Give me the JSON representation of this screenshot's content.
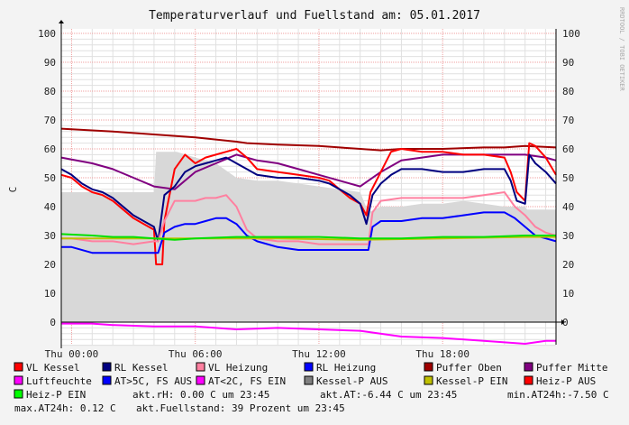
{
  "chart_data": {
    "type": "line",
    "title": "Temperaturverlauf und Fuellstand am: 05.01.2017",
    "ylabel": "C",
    "watermark": "RRDTOOL / TOBI OETIKER",
    "ylim": [
      -8,
      101
    ],
    "yticks": [
      0,
      10,
      20,
      30,
      40,
      50,
      60,
      70,
      80,
      90,
      100
    ],
    "ytick_labels": [
      "0",
      "10",
      "20",
      "30",
      "40",
      "50",
      "60",
      "70",
      "80",
      "90",
      "100"
    ],
    "x_range_hours": [
      -0.5,
      23.5
    ],
    "xticks_hours": [
      0,
      6,
      12,
      18
    ],
    "xtick_labels": [
      "Thu 00:00",
      "Thu 06:00",
      "Thu 12:00",
      "Thu 18:00"
    ],
    "grid": true,
    "legend_rows": [
      [
        {
          "label": "VL Kessel",
          "color": "#ff0000"
        },
        {
          "label": "RL Kessel",
          "color": "#000080"
        },
        {
          "label": "VL Heizung",
          "color": "#ff80a0"
        },
        {
          "label": "RL Heizung",
          "color": "#0000ff"
        },
        {
          "label": "Puffer Oben",
          "color": "#a00000"
        },
        {
          "label": "Puffer Mitte",
          "color": "#800080"
        }
      ],
      [
        {
          "label": "Luftfeuchte",
          "color": "#ff00ff"
        },
        {
          "label": "AT>5C, FS AUS",
          "color": "#0000ff"
        },
        {
          "label": "AT<2C, FS EIN",
          "color": "#ff00ff"
        },
        {
          "label": "Kessel-P AUS",
          "color": "#808080"
        },
        {
          "label": "Kessel-P EIN",
          "color": "#c0c000"
        },
        {
          "label": "Heiz-P AUS",
          "color": "#ff0000"
        }
      ]
    ],
    "legend_row3": {
      "label": "Heiz-P EIN",
      "color": "#00ff00"
    },
    "stats": {
      "rh": "akt.rH: 0.00 C um 23:45",
      "at": "akt.AT:-6.44 C um 23:45",
      "min_at": "min.AT24h:-7.50 C",
      "max_at": "max.AT24h: 0.12 C",
      "fuellstand": "akt.Fuellstand:   39 Prozent um 23:45"
    },
    "series": [
      {
        "name": "Kessel-P AUS",
        "color": "#d8d8d8",
        "style": "area",
        "x": [
          -0.5,
          4.0,
          4.1,
          5.0,
          5.1,
          6.0,
          7.0,
          8.0,
          9.0,
          10.0,
          11.0,
          12.0,
          13.0,
          14.0,
          14.4,
          15.0,
          16.0,
          17.0,
          18.0,
          19.0,
          20.0,
          21.0,
          22.0,
          22.1,
          23.5
        ],
        "values": [
          45,
          45,
          59,
          59,
          59,
          57,
          55,
          50,
          49,
          49,
          48,
          47,
          46,
          45,
          38,
          40,
          40,
          41,
          41,
          42,
          41,
          40,
          40,
          39,
          39
        ]
      },
      {
        "name": "Puffer Oben",
        "color": "#a00000",
        "x": [
          -0.5,
          2,
          4,
          6,
          8,
          8.5,
          10,
          12,
          14,
          15,
          16,
          18,
          20,
          21,
          22,
          23.5
        ],
        "values": [
          67,
          66,
          65,
          64,
          62.5,
          62,
          61.5,
          61,
          60,
          59.5,
          60,
          60,
          60.5,
          60.5,
          61,
          60.5
        ]
      },
      {
        "name": "Puffer Mitte",
        "color": "#800080",
        "x": [
          -0.5,
          1,
          2,
          3,
          4,
          5,
          6,
          7,
          8,
          9,
          10,
          11,
          12,
          13,
          14,
          15,
          16,
          17,
          18,
          19,
          20,
          21,
          22,
          23,
          23.5
        ],
        "values": [
          57,
          55,
          53,
          50,
          47,
          46,
          52,
          55,
          58,
          56,
          55,
          53,
          51,
          49,
          47,
          52,
          56,
          57,
          58,
          58,
          58,
          58,
          58,
          57,
          56
        ]
      },
      {
        "name": "VL Kessel",
        "color": "#ff0000",
        "x": [
          -0.5,
          0,
          0.5,
          1,
          1.5,
          2,
          2.5,
          3,
          3.5,
          4,
          4.1,
          4.4,
          4.5,
          5,
          5.5,
          6,
          6.5,
          7,
          7.5,
          8,
          8.5,
          9,
          10,
          11,
          12,
          12.5,
          13,
          13.5,
          14,
          14.3,
          14.5,
          15,
          15.5,
          16,
          17,
          18,
          19,
          20,
          21,
          21.3,
          21.6,
          22,
          22.2,
          22.5,
          23,
          23.5
        ],
        "values": [
          51,
          50,
          47,
          45,
          44,
          42,
          39,
          36,
          34,
          32,
          20,
          20,
          35,
          53,
          58,
          55,
          57,
          58,
          59,
          60,
          57,
          53,
          52,
          51,
          50,
          49,
          46,
          43,
          41,
          37,
          45,
          52,
          59,
          60,
          59,
          59,
          58,
          58,
          57,
          52,
          45,
          42,
          62,
          61,
          57,
          51
        ]
      },
      {
        "name": "RL Kessel",
        "color": "#000080",
        "x": [
          -0.5,
          0,
          0.5,
          1,
          1.5,
          2,
          2.5,
          3,
          3.5,
          4,
          4.2,
          4.5,
          5,
          5.5,
          6,
          6.5,
          7,
          7.5,
          8,
          8.5,
          9,
          10,
          11,
          12,
          12.5,
          13,
          13.5,
          14,
          14.3,
          14.6,
          15,
          15.5,
          16,
          17,
          18,
          19,
          20,
          21,
          21.3,
          21.6,
          22,
          22.2,
          22.5,
          23,
          23.5
        ],
        "values": [
          53,
          51,
          48,
          46,
          45,
          43,
          40,
          37,
          35,
          33,
          28,
          44,
          47,
          52,
          54,
          55,
          56,
          57,
          55,
          53,
          51,
          50,
          50,
          49,
          48,
          46,
          44,
          41,
          34,
          44,
          48,
          51,
          53,
          53,
          52,
          52,
          53,
          53,
          49,
          42,
          41,
          58,
          55,
          52,
          48
        ]
      },
      {
        "name": "VL Heizung",
        "color": "#ff80a0",
        "x": [
          -0.5,
          0,
          1,
          2,
          3,
          4,
          4.2,
          4.5,
          5,
          5.5,
          6,
          6.5,
          7,
          7.5,
          8,
          8.5,
          9,
          10,
          11,
          12,
          13,
          14,
          14.4,
          14.6,
          15,
          16,
          17,
          18,
          19,
          20,
          21,
          21.5,
          22,
          22.5,
          23,
          23.5
        ],
        "values": [
          29,
          29,
          28,
          28,
          27,
          28,
          28,
          35,
          42,
          42,
          42,
          43,
          43,
          44,
          40,
          32,
          29,
          28,
          28,
          27,
          27,
          27,
          27,
          38,
          42,
          43,
          43,
          43,
          43,
          44,
          45,
          40,
          37,
          33,
          31,
          30
        ]
      },
      {
        "name": "RL Heizung",
        "color": "#0000ff",
        "x": [
          -0.5,
          0,
          1,
          2,
          3,
          4,
          4.2,
          4.5,
          5,
          5.5,
          6,
          6.5,
          7,
          7.5,
          8,
          8.5,
          9,
          10,
          11,
          12,
          13,
          14,
          14.4,
          14.6,
          15,
          16,
          17,
          18,
          19,
          20,
          21,
          21.5,
          22,
          22.5,
          23,
          23.5
        ],
        "values": [
          26,
          26,
          24,
          24,
          24,
          24,
          24,
          31,
          33,
          34,
          34,
          35,
          36,
          36,
          34,
          30,
          28,
          26,
          25,
          25,
          25,
          25,
          25,
          33,
          35,
          35,
          36,
          36,
          37,
          38,
          38,
          36,
          33,
          30,
          29,
          28
        ]
      },
      {
        "name": "Kessel-P EIN",
        "color": "#c0c000",
        "x": [
          -0.5,
          4,
          6,
          10,
          14,
          18,
          22,
          23.5
        ],
        "values": [
          29,
          29,
          29,
          29,
          28.5,
          29,
          29.5,
          29.5
        ]
      },
      {
        "name": "Heiz-P EIN",
        "color": "#00e000",
        "x": [
          -0.5,
          1,
          2,
          3,
          4,
          5,
          6,
          8,
          10,
          12,
          14,
          16,
          18,
          20,
          22,
          23.5
        ],
        "values": [
          30.5,
          30,
          29.5,
          29.5,
          29,
          28.5,
          29,
          29.5,
          29.5,
          29.5,
          29,
          29,
          29.5,
          29.5,
          30,
          30
        ]
      },
      {
        "name": "Luftfeuchte",
        "color": "#ff00ff",
        "x": [
          -0.5,
          1,
          2,
          4,
          6,
          8,
          10,
          12,
          14,
          16,
          18,
          20,
          21,
          22,
          23,
          23.5
        ],
        "values": [
          -0.5,
          -0.5,
          -1,
          -1.5,
          -1.5,
          -2.5,
          -2,
          -2.5,
          -3,
          -5,
          -5.5,
          -6.5,
          -7,
          -7.5,
          -6.5,
          -6.5
        ]
      }
    ]
  }
}
